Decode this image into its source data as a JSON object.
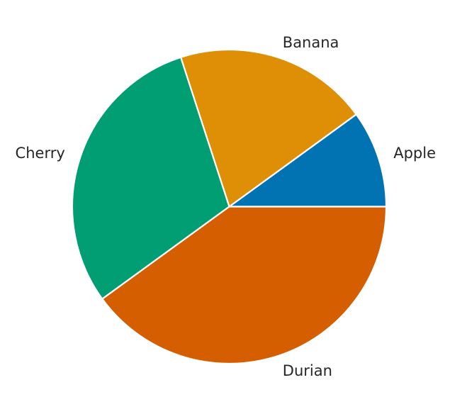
{
  "chart_data": {
    "type": "pie",
    "categories": [
      "Apple",
      "Banana",
      "Cherry",
      "Durian"
    ],
    "values": [
      10,
      20,
      30,
      40
    ],
    "colors": [
      "#0173b2",
      "#de8f05",
      "#029e73",
      "#d55e00"
    ],
    "start_angle": "0 degrees (3 o'clock), counter-clockwise",
    "title": "",
    "legend": "none"
  }
}
